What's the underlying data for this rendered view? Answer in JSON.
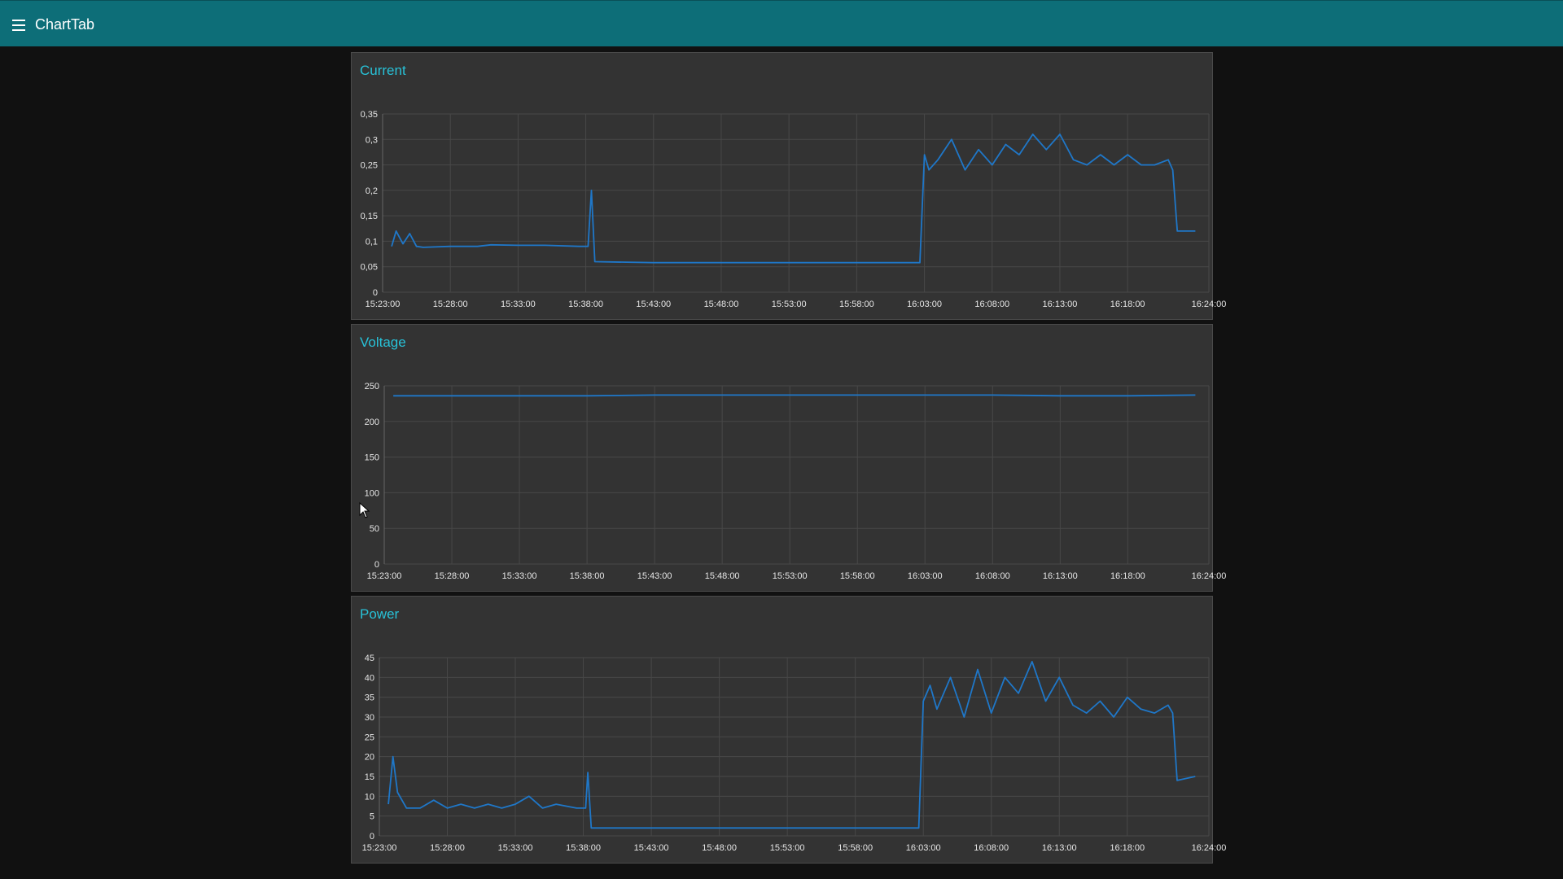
{
  "app": {
    "title": "ChartTab",
    "menu_icon": "hamburger-menu-icon"
  },
  "colors": {
    "header": "#0d6e78",
    "background": "#111111",
    "card": "#333333",
    "title": "#28c2d8",
    "line": "#1f77c8",
    "grid": "#484848",
    "tick_text": "#e6e6e6"
  },
  "x_ticks": [
    "15:23:00",
    "15:28:00",
    "15:33:00",
    "15:38:00",
    "15:43:00",
    "15:48:00",
    "15:53:00",
    "15:58:00",
    "16:03:00",
    "16:08:00",
    "16:13:00",
    "16:18:00",
    "16:24:00"
  ],
  "chart_data": [
    {
      "type": "line",
      "title": "Current",
      "xlabel": "",
      "ylabel": "",
      "xlim": [
        "15:23:00",
        "16:24:00"
      ],
      "ylim": [
        0,
        0.35
      ],
      "y_ticks": [
        "0",
        "0,05",
        "0,1",
        "0,15",
        "0,2",
        "0,25",
        "0,3",
        "0,35"
      ],
      "grid": true,
      "series": [
        {
          "x": [
            "15:23:40",
            "15:24:00",
            "15:24:30",
            "15:25:00",
            "15:25:30",
            "15:26:00",
            "15:28:00",
            "15:30:00",
            "15:31:00",
            "15:33:00",
            "15:35:00",
            "15:37:30",
            "15:38:10",
            "15:38:25",
            "15:38:40",
            "15:43:00",
            "15:48:00",
            "15:53:00",
            "15:58:00",
            "16:02:40",
            "16:03:00",
            "16:03:20",
            "16:04:00",
            "16:05:00",
            "16:06:00",
            "16:07:00",
            "16:08:00",
            "16:09:00",
            "16:10:00",
            "16:11:00",
            "16:12:00",
            "16:13:00",
            "16:14:00",
            "16:15:00",
            "16:16:00",
            "16:17:00",
            "16:18:00",
            "16:19:00",
            "16:20:00",
            "16:21:00",
            "16:21:20",
            "16:21:40",
            "16:23:00"
          ],
          "y": [
            0.09,
            0.12,
            0.095,
            0.115,
            0.09,
            0.088,
            0.09,
            0.09,
            0.093,
            0.092,
            0.092,
            0.09,
            0.09,
            0.2,
            0.06,
            0.058,
            0.058,
            0.058,
            0.058,
            0.058,
            0.27,
            0.24,
            0.26,
            0.3,
            0.24,
            0.28,
            0.25,
            0.29,
            0.27,
            0.31,
            0.28,
            0.31,
            0.26,
            0.25,
            0.27,
            0.25,
            0.27,
            0.25,
            0.25,
            0.26,
            0.24,
            0.12,
            0.12
          ]
        }
      ]
    },
    {
      "type": "line",
      "title": "Voltage",
      "xlabel": "",
      "ylabel": "",
      "xlim": [
        "15:23:00",
        "16:24:00"
      ],
      "ylim": [
        0,
        250
      ],
      "y_ticks": [
        "0",
        "50",
        "100",
        "150",
        "200",
        "250"
      ],
      "grid": true,
      "series": [
        {
          "x": [
            "15:23:40",
            "15:28:00",
            "15:33:00",
            "15:38:00",
            "15:43:00",
            "15:48:00",
            "15:53:00",
            "15:58:00",
            "16:03:00",
            "16:08:00",
            "16:13:00",
            "16:18:00",
            "16:23:00"
          ],
          "y": [
            236,
            236,
            236,
            236,
            237,
            237,
            237,
            237,
            237,
            237,
            236,
            236,
            237
          ]
        }
      ]
    },
    {
      "type": "line",
      "title": "Power",
      "xlabel": "",
      "ylabel": "",
      "xlim": [
        "15:23:00",
        "16:24:00"
      ],
      "ylim": [
        0,
        45
      ],
      "y_ticks": [
        "0",
        "5",
        "10",
        "15",
        "20",
        "25",
        "30",
        "35",
        "40",
        "45"
      ],
      "grid": true,
      "series": [
        {
          "x": [
            "15:23:40",
            "15:24:00",
            "15:24:20",
            "15:24:40",
            "15:25:00",
            "15:26:00",
            "15:27:00",
            "15:28:00",
            "15:29:00",
            "15:30:00",
            "15:31:00",
            "15:32:00",
            "15:33:00",
            "15:34:00",
            "15:35:00",
            "15:36:00",
            "15:37:30",
            "15:38:10",
            "15:38:20",
            "15:38:35",
            "15:43:00",
            "15:48:00",
            "15:53:00",
            "15:58:00",
            "16:02:40",
            "16:03:00",
            "16:03:30",
            "16:04:00",
            "16:05:00",
            "16:06:00",
            "16:07:00",
            "16:08:00",
            "16:09:00",
            "16:10:00",
            "16:11:00",
            "16:12:00",
            "16:13:00",
            "16:14:00",
            "16:15:00",
            "16:16:00",
            "16:17:00",
            "16:18:00",
            "16:19:00",
            "16:20:00",
            "16:21:00",
            "16:21:20",
            "16:21:40",
            "16:23:00"
          ],
          "y": [
            8,
            20,
            11,
            9,
            7,
            7,
            9,
            7,
            8,
            7,
            8,
            7,
            8,
            10,
            7,
            8,
            7,
            7,
            16,
            2,
            2,
            2,
            2,
            2,
            2,
            34,
            38,
            32,
            40,
            30,
            42,
            31,
            40,
            36,
            44,
            34,
            40,
            33,
            31,
            34,
            30,
            35,
            32,
            31,
            33,
            31,
            14,
            15
          ]
        }
      ]
    }
  ]
}
